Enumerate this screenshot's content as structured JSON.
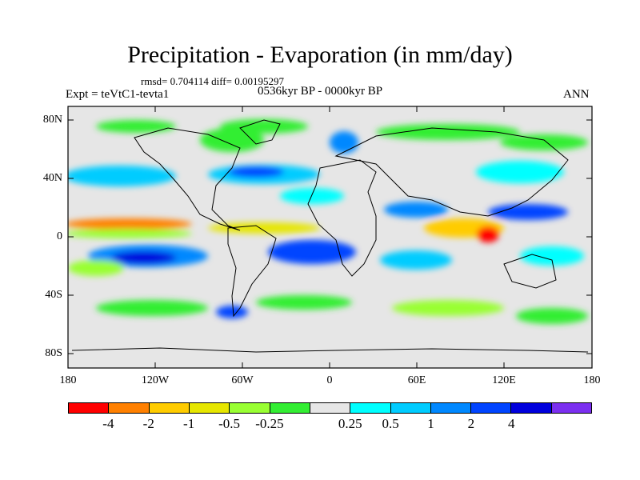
{
  "title": "Precipitation - Evaporation (in mm/day)",
  "stats": "rmsd= 0.704114  diff= 0.00195297",
  "period": "0536kyr BP - 0000kyr BP",
  "experiment": "Expt = teVtC1-tevta1",
  "season": "ANN",
  "lat_labels": [
    "80N",
    "40N",
    "0",
    "40S",
    "80S"
  ],
  "lon_labels": [
    "180",
    "120W",
    "60W",
    "0",
    "60E",
    "120E",
    "180"
  ],
  "colorbar": {
    "colors": [
      "#ff0000",
      "#ff8000",
      "#ffcc00",
      "#e6e600",
      "#99ff33",
      "#33ee33",
      "#e6e6e6",
      "#00ffff",
      "#00ccff",
      "#0088ff",
      "#0044ff",
      "#0000dd",
      "#7b2ff0"
    ],
    "labels": [
      "-4",
      "-2",
      "-1",
      "-0.5",
      "-0.25",
      "0.25",
      "0.5",
      "1",
      "2",
      "4"
    ]
  }
}
